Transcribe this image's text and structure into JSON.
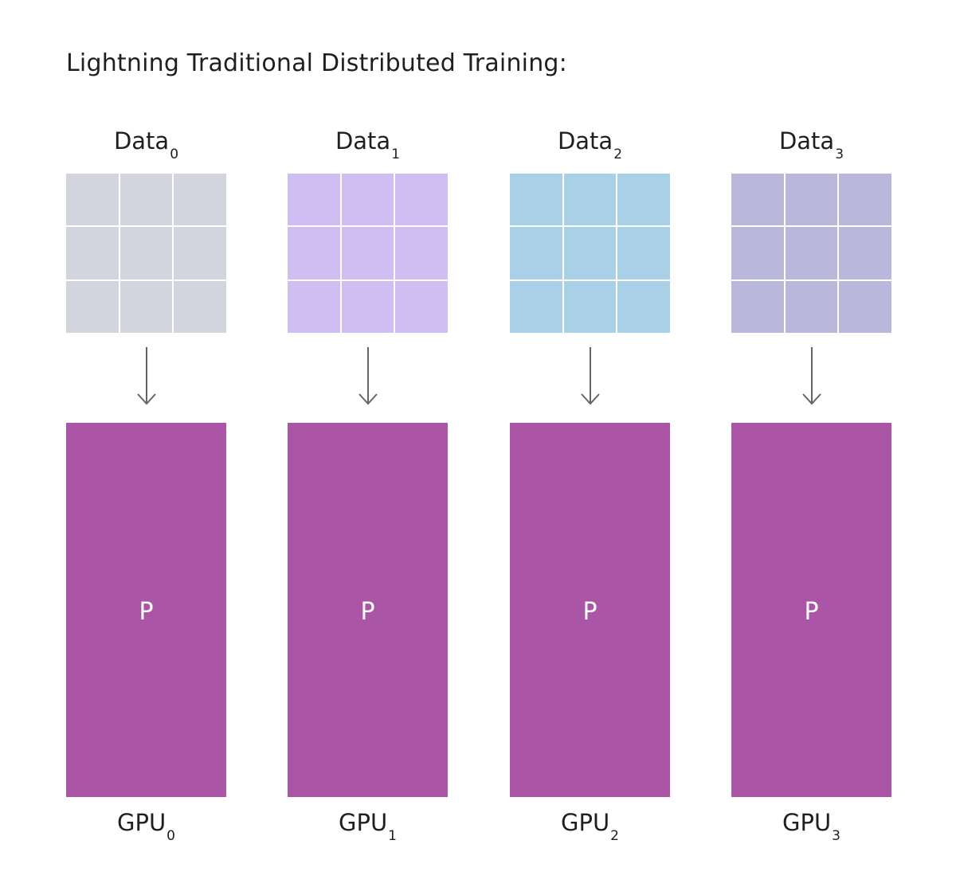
{
  "title": "Lightning Traditional Distributed Training:",
  "columns": [
    {
      "data_label": "Data",
      "data_sub": "0",
      "box_text": "P",
      "gpu_label": "GPU",
      "gpu_sub": "0",
      "grid_color": "#d2d4de"
    },
    {
      "data_label": "Data",
      "data_sub": "1",
      "box_text": "P",
      "gpu_label": "GPU",
      "gpu_sub": "1",
      "grid_color": "#d0bdf2"
    },
    {
      "data_label": "Data",
      "data_sub": "2",
      "box_text": "P",
      "gpu_label": "GPU",
      "gpu_sub": "2",
      "grid_color": "#a9d0e6"
    },
    {
      "data_label": "Data",
      "data_sub": "3",
      "box_text": "P",
      "gpu_label": "GPU",
      "gpu_sub": "3",
      "grid_color": "#b9b8db"
    }
  ],
  "colors": {
    "gpu_box": "#aa55a5",
    "arrow": "#666666",
    "text": "#1f1f1f"
  },
  "icons": {
    "arrow": "down-arrow-icon"
  }
}
